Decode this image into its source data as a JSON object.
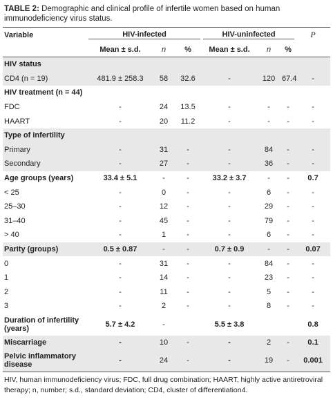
{
  "title": {
    "label": "TABLE 2:",
    "text": "Demographic and clinical profile of infertile women based on human immunodeficiency virus status."
  },
  "table": {
    "header": {
      "variable": "Variable",
      "group1": "HIV-infected",
      "group2": "HIV-uninfected",
      "p": "P",
      "sub": [
        "Mean ± s.d.",
        "n",
        "%",
        "Mean ± s.d.",
        "n",
        "%"
      ]
    },
    "rows": [
      {
        "label": "HIV status",
        "bold": true,
        "shaded": true,
        "cells": [
          null,
          null,
          null,
          null,
          null,
          null,
          null
        ]
      },
      {
        "label": "CD4 (n = 19)",
        "bold": false,
        "shaded": true,
        "cells": [
          "481.9 ± 258.3",
          "58",
          "32.6",
          "-",
          "120",
          "67.4",
          "-"
        ]
      },
      {
        "label": "HIV treatment (n = 44)",
        "bold": true,
        "shaded": false,
        "cells": [
          null,
          null,
          null,
          null,
          null,
          null,
          null
        ]
      },
      {
        "label": "FDC",
        "bold": false,
        "shaded": false,
        "cells": [
          "-",
          "24",
          "13.5",
          "-",
          "-",
          "-",
          "-"
        ]
      },
      {
        "label": "HAART",
        "bold": false,
        "shaded": false,
        "cells": [
          "-",
          "20",
          "11.2",
          "-",
          "-",
          "-",
          "-"
        ]
      },
      {
        "label": "Type of infertility",
        "bold": true,
        "shaded": true,
        "cells": [
          null,
          null,
          null,
          null,
          null,
          null,
          null
        ]
      },
      {
        "label": "Primary",
        "bold": false,
        "shaded": true,
        "cells": [
          "-",
          "31",
          "-",
          "-",
          "84",
          "-",
          "-"
        ]
      },
      {
        "label": "Secondary",
        "bold": false,
        "shaded": true,
        "cells": [
          "-",
          "27",
          "-",
          "-",
          "36",
          "-",
          "-"
        ]
      },
      {
        "label": "Age groups (years)",
        "bold": true,
        "shaded": false,
        "cells": [
          "33.4 ± 5.1",
          "-",
          "-",
          "33.2 ± 3.7",
          "-",
          "-",
          "0.7"
        ]
      },
      {
        "label": "< 25",
        "bold": false,
        "shaded": false,
        "cells": [
          "-",
          "0",
          "-",
          "-",
          "6",
          "-",
          "-"
        ]
      },
      {
        "label": "25–30",
        "bold": false,
        "shaded": false,
        "cells": [
          "-",
          "12",
          "-",
          "-",
          "29",
          "-",
          "-"
        ]
      },
      {
        "label": "31–40",
        "bold": false,
        "shaded": false,
        "cells": [
          "-",
          "45",
          "-",
          "-",
          "79",
          "-",
          "-"
        ]
      },
      {
        "label": "> 40",
        "bold": false,
        "shaded": false,
        "cells": [
          "-",
          "1",
          "-",
          "-",
          "6",
          "-",
          "-"
        ]
      },
      {
        "label": "Parity (groups)",
        "bold": true,
        "shaded": true,
        "cells": [
          "0.5 ± 0.87",
          "-",
          "-",
          "0.7 ± 0.9",
          "-",
          "-",
          "0.07"
        ]
      },
      {
        "label": "0",
        "bold": false,
        "shaded": false,
        "cells": [
          "-",
          "31",
          "-",
          "-",
          "84",
          "-",
          "-"
        ]
      },
      {
        "label": "1",
        "bold": false,
        "shaded": false,
        "cells": [
          "-",
          "14",
          "-",
          "-",
          "23",
          "-",
          "-"
        ]
      },
      {
        "label": "2",
        "bold": false,
        "shaded": false,
        "cells": [
          "-",
          "11",
          "-",
          "-",
          "5",
          "-",
          "-"
        ]
      },
      {
        "label": "3",
        "bold": false,
        "shaded": false,
        "cells": [
          "-",
          "2",
          "-",
          "-",
          "8",
          "-",
          "-"
        ]
      },
      {
        "label": "Duration of infertility (years)",
        "bold": true,
        "shaded": false,
        "cells": [
          "5.7 ± 4.2",
          "-",
          null,
          "5.5 ± 3.8",
          null,
          null,
          "0.8"
        ]
      },
      {
        "label": "Miscarriage",
        "bold": true,
        "shaded": true,
        "cells": [
          "-",
          "10",
          "-",
          "-",
          "2",
          "-",
          "0.1"
        ]
      },
      {
        "label": "Pelvic inflammatory disease",
        "bold": true,
        "shaded": true,
        "cells": [
          "-",
          "24",
          "-",
          "-",
          "19",
          "-",
          "0.001"
        ]
      }
    ]
  },
  "note": "HIV, human immunodeficiency virus; FDC, full drug combination; HAART, highly active antiretroviral therapy; n, number; s.d., standard deviation; CD4, cluster of differentiation4."
}
